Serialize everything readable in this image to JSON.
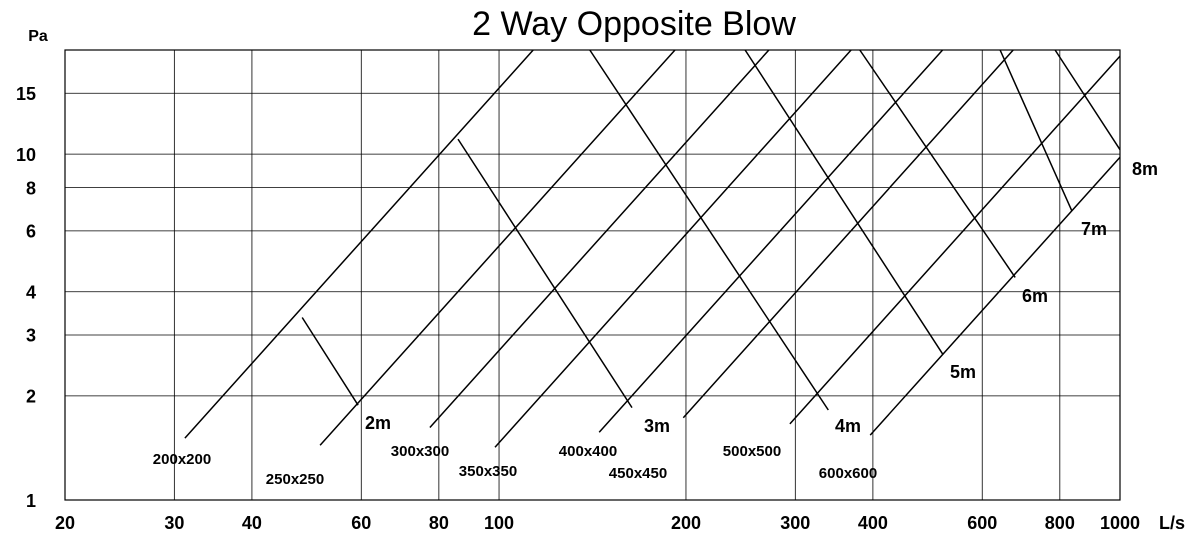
{
  "chart_data": {
    "type": "line",
    "title": "2 Way Opposite Blow",
    "x_label": "L/s",
    "y_label": "Pa",
    "xscale": "log",
    "yscale": "log",
    "grid": true,
    "xlim": [
      20,
      1000
    ],
    "ylim": [
      1,
      20
    ],
    "xticks": [
      20,
      30,
      40,
      60,
      80,
      100,
      200,
      300,
      400,
      600,
      800,
      1000
    ],
    "yticks": [
      1,
      2,
      3,
      4,
      6,
      8,
      10,
      15
    ],
    "series": [
      {
        "name": "200x200",
        "color": "#000000",
        "x": [
          31.2,
          113.5
        ],
        "values": [
          1.51,
          20
        ]
      },
      {
        "name": "250x250",
        "color": "#000000",
        "x": [
          51.5,
          192
        ],
        "values": [
          1.44,
          20
        ]
      },
      {
        "name": "300x300",
        "color": "#000000",
        "x": [
          77.4,
          272
        ],
        "values": [
          1.62,
          20
        ]
      },
      {
        "name": "350x350",
        "color": "#000000",
        "x": [
          98.5,
          369
        ],
        "values": [
          1.42,
          20
        ]
      },
      {
        "name": "400x400",
        "color": "#000000",
        "x": [
          145,
          518
        ],
        "values": [
          1.57,
          20
        ]
      },
      {
        "name": "450x450",
        "color": "#000000",
        "x": [
          198,
          673
        ],
        "values": [
          1.73,
          20
        ]
      },
      {
        "name": "500x500",
        "color": "#000000",
        "x": [
          294,
          1000
        ],
        "values": [
          1.66,
          19.2
        ]
      },
      {
        "name": "600x600",
        "color": "#000000",
        "x": [
          396,
          1000
        ],
        "values": [
          1.54,
          9.8
        ]
      },
      {
        "name": "2m",
        "color": "#000000",
        "x": [
          48.2,
          59.3
        ],
        "values": [
          3.37,
          1.88
        ]
      },
      {
        "name": "3m",
        "color": "#000000",
        "x": [
          85.9,
          163.7
        ],
        "values": [
          11.05,
          1.85
        ]
      },
      {
        "name": "4m",
        "color": "#000000",
        "x": [
          140,
          339
        ],
        "values": [
          20,
          1.82
        ]
      },
      {
        "name": "5m",
        "color": "#000000",
        "x": [
          249,
          519
        ],
        "values": [
          20,
          2.63
        ]
      },
      {
        "name": "6m",
        "color": "#000000",
        "x": [
          381,
          678
        ],
        "values": [
          20,
          4.4
        ]
      },
      {
        "name": "7m",
        "color": "#000000",
        "x": [
          641,
          837
        ],
        "values": [
          20,
          6.84
        ]
      },
      {
        "name": "8m",
        "color": "#000000",
        "x": [
          786,
          1000
        ],
        "values": [
          20,
          10.3
        ]
      }
    ]
  }
}
